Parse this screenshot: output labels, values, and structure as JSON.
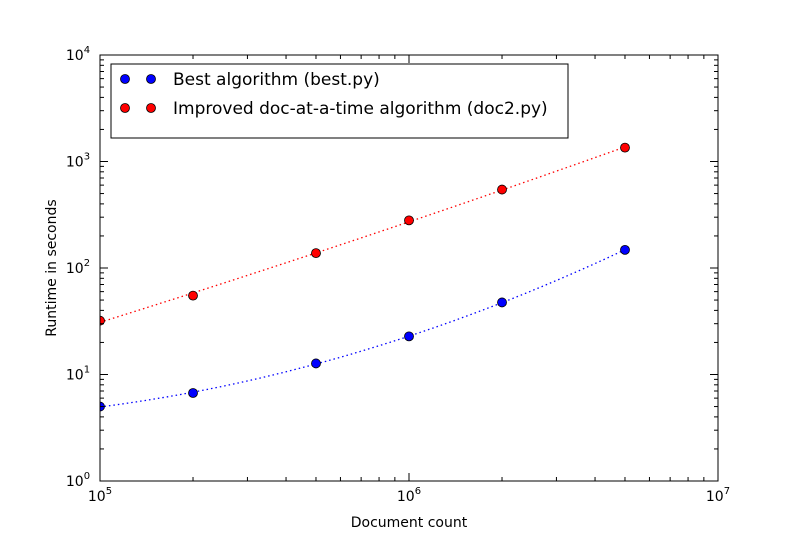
{
  "chart_data": {
    "type": "scatter",
    "xlabel": "Document count",
    "ylabel": "Runtime in seconds",
    "xscale": "log",
    "yscale": "log",
    "xlim": [
      100000,
      10000000
    ],
    "ylim": [
      1,
      10000
    ],
    "x_ticks": [
      {
        "base": "10",
        "exp": "5",
        "value": 100000
      },
      {
        "base": "10",
        "exp": "6",
        "value": 1000000
      },
      {
        "base": "10",
        "exp": "7",
        "value": 10000000
      }
    ],
    "y_ticks": [
      {
        "base": "10",
        "exp": "0",
        "value": 1
      },
      {
        "base": "10",
        "exp": "1",
        "value": 10
      },
      {
        "base": "10",
        "exp": "2",
        "value": 100
      },
      {
        "base": "10",
        "exp": "3",
        "value": 1000
      },
      {
        "base": "10",
        "exp": "4",
        "value": 10000
      }
    ],
    "legend_position": "top-left",
    "grid": false,
    "series": [
      {
        "name": "Best algorithm (best.py)",
        "color": "#0000ff",
        "x": [
          100000,
          200000,
          500000,
          1000000,
          2000000,
          5000000
        ],
        "y": [
          5.0,
          6.7,
          12.7,
          22.8,
          47.5,
          148
        ]
      },
      {
        "name": "Improved doc-at-a-time algorithm (doc2.py)",
        "color": "#ff0000",
        "x": [
          100000,
          200000,
          500000,
          1000000,
          2000000,
          5000000
        ],
        "y": [
          32,
          55,
          138,
          280,
          545,
          1350
        ]
      }
    ]
  }
}
